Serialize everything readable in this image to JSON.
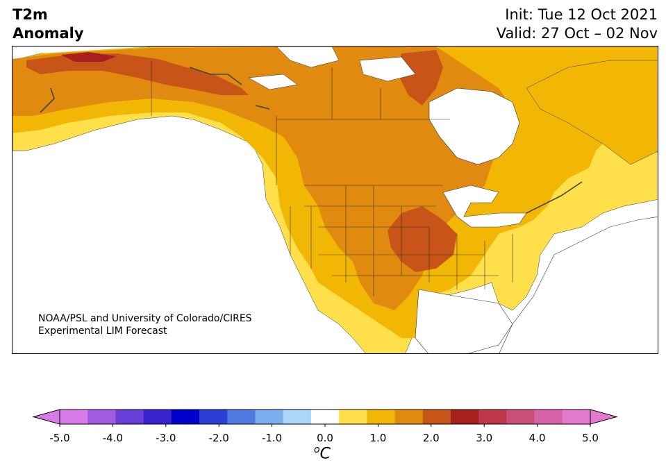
{
  "title": {
    "variable_line1": "T2m",
    "variable_line2": "Anomaly",
    "init": "Init: Tue 12 Oct 2021",
    "valid": "Valid: 27 Oct – 02 Nov"
  },
  "credit": {
    "line1": "NOAA/PSL and University of Colorado/CIRES",
    "line2": "Experimental LIM Forecast"
  },
  "colorbar": {
    "unit_sup": "o",
    "unit": "C",
    "tick_labels": [
      "-5.0",
      "-4.0",
      "-3.0",
      "-2.0",
      "-1.0",
      "0.0",
      "1.0",
      "2.0",
      "3.0",
      "4.0",
      "5.0"
    ],
    "levels": [
      -5.0,
      -4.5,
      -4.0,
      -3.5,
      -3.0,
      -2.5,
      -2.0,
      -1.5,
      -1.0,
      -0.5,
      0.5,
      1.0,
      1.5,
      2.0,
      2.5,
      3.0,
      3.5,
      4.0,
      4.5,
      5.0
    ],
    "colors": [
      "#d87ae8",
      "#a25ae0",
      "#6a3ed8",
      "#3b22cf",
      "#0000cc",
      "#2a3fd8",
      "#4f7ae0",
      "#7aaeee",
      "#aad6f8",
      "#ffffff",
      "#ffe04a",
      "#f2b705",
      "#e08a10",
      "#c85418",
      "#a8201e",
      "#c0364a",
      "#cc4f7a",
      "#d862a8",
      "#e47ad0"
    ],
    "under_color": "#d87ae8",
    "over_color": "#e47ad0"
  },
  "map": {
    "region": "North America",
    "anomaly_colors": {
      "white": "#ffffff",
      "pale_yellow": "#ffe04a",
      "yellow": "#f2b705",
      "orange": "#e08a10",
      "dark_orange": "#c85418",
      "red": "#a8201e"
    }
  }
}
